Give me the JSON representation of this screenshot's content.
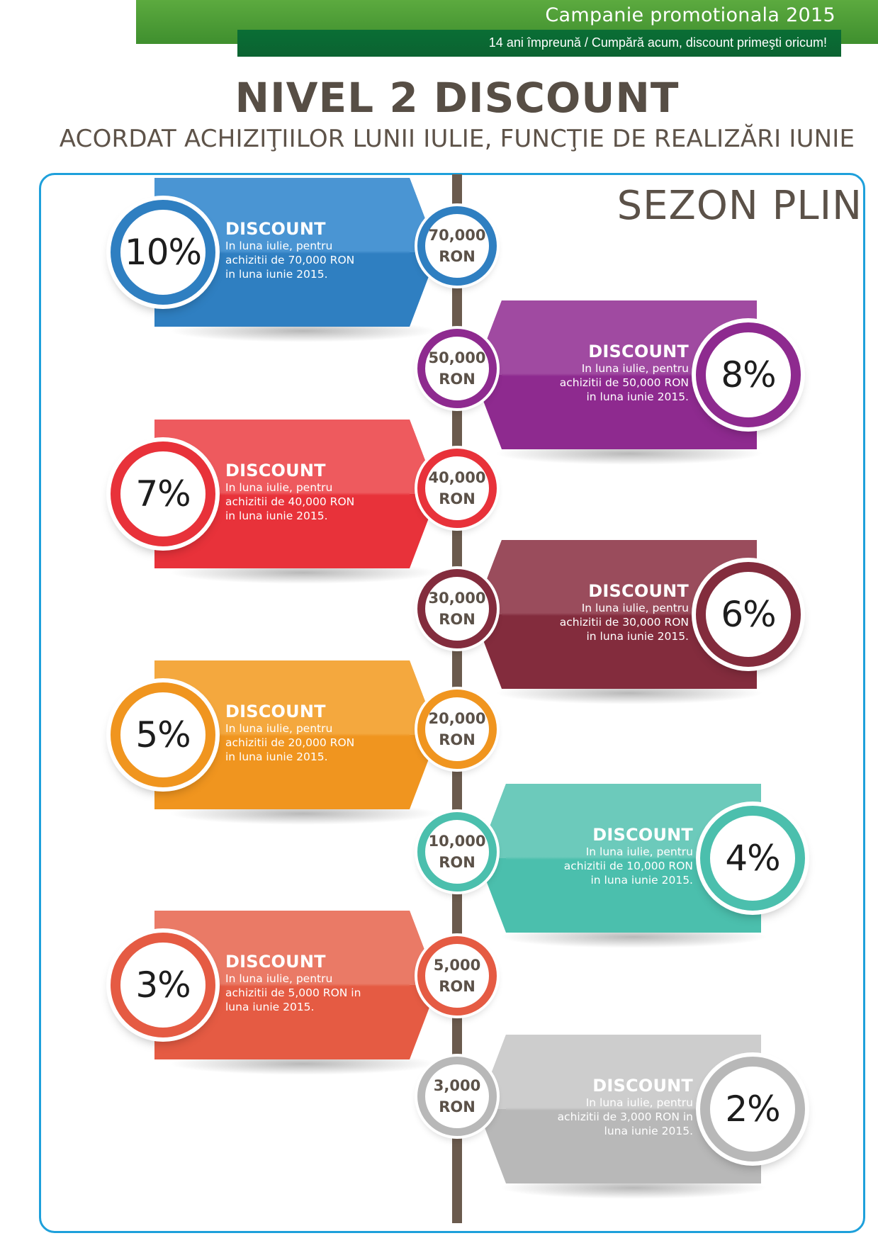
{
  "header": {
    "campaign": "Campanie promotionala 2015",
    "tagline": "14 ani împreună / Cumpără acum, discount primeşti oricum!"
  },
  "title": "NIVEL 2 DISCOUNT",
  "subtitle": "ACORDAT ACHIZIŢIILOR LUNII IULIE, FUNCŢIE DE REALIZĂRI IUNIE",
  "season": "SEZON PLIN",
  "tiers": [
    {
      "percent": "10%",
      "amount": "70,000",
      "currency": "RON",
      "side": "left",
      "color": "#2f7fc1",
      "color_light": "#4a95d3",
      "label": "DISCOUNT",
      "lines": [
        "In luna iulie, pentru",
        "achizitii de 70,000 RON",
        "in luna iunie 2015."
      ]
    },
    {
      "percent": "8%",
      "amount": "50,000",
      "currency": "RON",
      "side": "right",
      "color": "#8e2a8f",
      "color_light": "#a04aa1",
      "label": "DISCOUNT",
      "lines": [
        "In luna iulie, pentru",
        "achizitii de 50,000 RON",
        "in  luna iunie 2015."
      ]
    },
    {
      "percent": "7%",
      "amount": "40,000",
      "currency": "RON",
      "side": "left",
      "color": "#e8323a",
      "color_light": "#ee5a5e",
      "label": "DISCOUNT",
      "lines": [
        "In luna iulie, pentru",
        "achizitii de 40,000 RON",
        "in luna iunie 2015."
      ]
    },
    {
      "percent": "6%",
      "amount": "30,000",
      "currency": "RON",
      "side": "right",
      "color": "#832c3d",
      "color_light": "#9a4c5c",
      "label": "DISCOUNT",
      "lines": [
        "In luna iulie, pentru",
        "achizitii de 30,000 RON",
        "in  luna iunie 2015."
      ]
    },
    {
      "percent": "5%",
      "amount": "20,000",
      "currency": "RON",
      "side": "left",
      "color": "#f0951f",
      "color_light": "#f4a83e",
      "label": "DISCOUNT",
      "lines": [
        "In luna iulie, pentru",
        "achizitii de 20,000 RON",
        "in luna iunie 2015."
      ]
    },
    {
      "percent": "4%",
      "amount": "10,000",
      "currency": "RON",
      "side": "right",
      "color": "#4bbfad",
      "color_light": "#6ccabb",
      "label": "DISCOUNT",
      "lines": [
        "In luna iulie, pentru",
        "achizitii de 10,000 RON",
        "in  luna iunie 2015."
      ]
    },
    {
      "percent": "3%",
      "amount": "5,000",
      "currency": "RON",
      "side": "left",
      "color": "#e55b43",
      "color_light": "#ea7a66",
      "label": "DISCOUNT",
      "lines": [
        "In luna iulie, pentru",
        "achizitii de 5,000 RON in",
        "luna iunie 2015."
      ]
    },
    {
      "percent": "2%",
      "amount": "3,000",
      "currency": "RON",
      "side": "right",
      "color": "#b8b8b8",
      "color_light": "#cdcdcd",
      "label": "DISCOUNT",
      "lines": [
        "In luna iulie, pentru",
        "achizitii de 3,000 RON in",
        "luna iunie 2015."
      ]
    }
  ]
}
